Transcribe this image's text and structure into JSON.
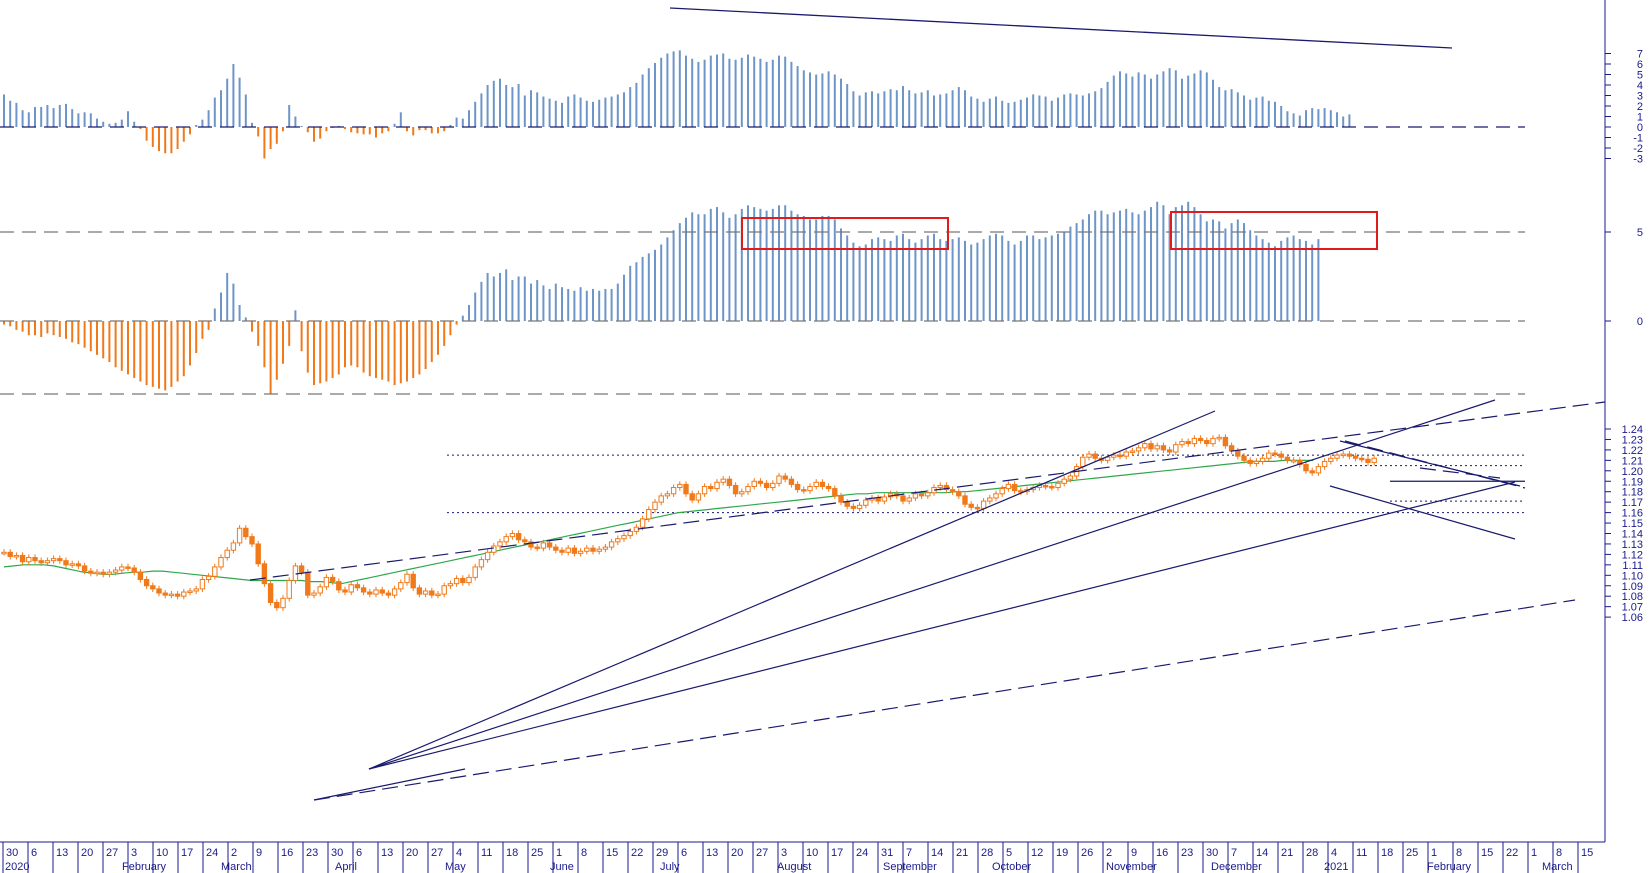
{
  "colors": {
    "up": "#6d95c7",
    "down": "#f07a1a",
    "candle": "#f07a1a",
    "ma": "#2ea84a",
    "trend": "#1a1a6e",
    "box": "#e01b1b",
    "axis": "#1a1a8c",
    "ref": "#555555"
  },
  "chart_data": [
    {
      "type": "bar",
      "panel": "histogram-top",
      "ylim": [
        -3.5,
        7.5
      ],
      "yticks": [
        "7",
        "6",
        "5",
        "4",
        "3",
        "2",
        "1",
        "0",
        "-1",
        "-2",
        "-3"
      ],
      "values": [
        3.1,
        2.5,
        2.3,
        1.6,
        1.4,
        1.9,
        1.9,
        2.1,
        1.8,
        2.1,
        2.2,
        1.7,
        1.3,
        1.4,
        1.3,
        0.8,
        0.5,
        0.3,
        0.4,
        0.7,
        1.5,
        0.5,
        -0.2,
        -1.3,
        -1.9,
        -2.3,
        -2.5,
        -2.5,
        -2.1,
        -1.4,
        -0.7,
        0.2,
        0.7,
        1.6,
        2.8,
        3.5,
        4.6,
        6.0,
        4.7,
        3.1,
        0.4,
        -0.9,
        -3.0,
        -2.1,
        -1.6,
        -0.4,
        2.1,
        1.0,
        0.1,
        -0.5,
        -1.4,
        -1.1,
        -0.4,
        -0.1,
        0.1,
        -0.2,
        -0.5,
        -0.6,
        -0.7,
        -0.7,
        -1.0,
        -0.6,
        -0.4,
        0.3,
        1.4,
        -0.4,
        -0.8,
        -0.3,
        -0.3,
        -0.6,
        -0.6,
        -0.4,
        0.2,
        0.9,
        0.8,
        1.6,
        2.4,
        3.2,
        4.0,
        4.4,
        4.6,
        4.0,
        3.8,
        4.1,
        3.0,
        3.5,
        3.3,
        2.9,
        2.7,
        2.5,
        2.3,
        2.9,
        3.1,
        2.8,
        2.5,
        2.4,
        2.6,
        2.8,
        2.9,
        3.1,
        3.3,
        3.8,
        4.2,
        5.0,
        5.6,
        6.1,
        6.6,
        7.0,
        7.2,
        7.3,
        6.8,
        6.5,
        6.2,
        6.4,
        6.8,
        6.9,
        7.0,
        6.5,
        6.4,
        6.6,
        6.9,
        6.7,
        6.5,
        6.2,
        6.4,
        6.8,
        6.7,
        6.2,
        5.8,
        5.4,
        5.2,
        5.0,
        5.1,
        5.3,
        5.0,
        4.6,
        4.1,
        3.4,
        3.0,
        3.3,
        3.4,
        3.2,
        3.4,
        3.6,
        3.5,
        3.9,
        3.5,
        3.2,
        3.3,
        3.5,
        3.0,
        3.1,
        3.2,
        3.5,
        3.8,
        3.5,
        2.9,
        2.7,
        2.4,
        2.7,
        2.9,
        2.5,
        2.3,
        2.4,
        2.6,
        2.8,
        3.1,
        3.0,
        2.9,
        2.5,
        2.8,
        3.1,
        3.2,
        3.1,
        3.0,
        3.2,
        3.4,
        3.7,
        4.3,
        4.9,
        5.3,
        5.1,
        4.8,
        5.2,
        5.0,
        4.6,
        5.0,
        5.3,
        5.6,
        5.4,
        4.6,
        4.9,
        5.1,
        5.4,
        5.2,
        4.5,
        3.8,
        3.5,
        3.6,
        3.3,
        3.0,
        2.6,
        2.8,
        2.9,
        2.5,
        2.4,
        2.0,
        1.5,
        1.3,
        1.1,
        1.6,
        1.8,
        1.7,
        1.8,
        1.6,
        1.4,
        1.0,
        1.2
      ]
    },
    {
      "type": "bar",
      "panel": "histogram-middle",
      "ylim": [
        -4.5,
        8
      ],
      "yticks": [
        "5",
        "0"
      ],
      "values": [
        -0.2,
        -0.3,
        -0.5,
        -0.6,
        -0.8,
        -0.8,
        -0.9,
        -0.7,
        -0.8,
        -0.9,
        -1.0,
        -1.2,
        -1.3,
        -1.5,
        -1.7,
        -1.9,
        -2.1,
        -2.3,
        -2.6,
        -2.8,
        -3.0,
        -3.2,
        -3.4,
        -3.6,
        -3.7,
        -3.8,
        -3.9,
        -3.7,
        -3.4,
        -3.1,
        -2.5,
        -1.8,
        -1.0,
        -0.5,
        0.7,
        1.6,
        2.7,
        2.1,
        0.9,
        0.2,
        -0.6,
        -1.4,
        -2.6,
        -4.1,
        -3.3,
        -2.4,
        -1.4,
        0.6,
        -1.7,
        -2.9,
        -3.6,
        -3.5,
        -3.4,
        -3.2,
        -3.0,
        -2.6,
        -2.5,
        -2.6,
        -2.9,
        -3.1,
        -3.2,
        -3.3,
        -3.4,
        -3.6,
        -3.5,
        -3.4,
        -3.2,
        -3.0,
        -2.7,
        -2.3,
        -1.9,
        -1.4,
        -0.8,
        -0.2,
        0.3,
        0.9,
        1.6,
        2.2,
        2.7,
        2.5,
        2.7,
        2.9,
        2.3,
        2.5,
        2.5,
        2.1,
        2.3,
        2.0,
        1.8,
        2.1,
        1.9,
        1.8,
        1.7,
        1.9,
        1.7,
        1.8,
        1.7,
        1.8,
        1.8,
        2.1,
        2.6,
        3.1,
        3.3,
        3.6,
        3.8,
        4.0,
        4.3,
        4.7,
        5.1,
        5.5,
        5.8,
        6.1,
        6.0,
        6.0,
        6.3,
        6.4,
        6.1,
        5.8,
        6.0,
        6.3,
        6.5,
        6.4,
        6.3,
        6.2,
        6.3,
        6.5,
        6.5,
        6.2,
        6.0,
        5.9,
        5.7,
        5.7,
        5.9,
        5.9,
        5.7,
        5.2,
        4.8,
        4.4,
        4.2,
        4.3,
        4.6,
        4.7,
        4.6,
        4.5,
        4.8,
        4.9,
        4.6,
        4.4,
        4.6,
        4.8,
        4.9,
        4.6,
        4.5,
        4.6,
        4.7,
        4.5,
        4.3,
        4.4,
        4.6,
        4.8,
        4.9,
        4.8,
        4.5,
        4.3,
        4.5,
        4.8,
        4.8,
        4.6,
        4.7,
        4.8,
        4.9,
        5.0,
        5.3,
        5.5,
        5.7,
        6.0,
        6.2,
        6.2,
        6.0,
        6.1,
        6.2,
        6.3,
        6.1,
        6.0,
        6.2,
        6.4,
        6.7,
        6.5,
        6.0,
        6.4,
        6.5,
        6.7,
        6.4,
        6.0,
        5.6,
        5.7,
        5.6,
        5.2,
        5.5,
        5.7,
        5.5,
        5.1,
        4.8,
        4.6,
        4.4,
        4.2,
        4.5,
        4.7,
        4.8,
        4.6,
        4.5,
        4.3,
        4.6
      ]
    },
    {
      "type": "candlestick",
      "panel": "price",
      "ylim": [
        1.05,
        1.25
      ],
      "yticks": [
        "1.24",
        "1.23",
        "1.22",
        "1.21",
        "1.20",
        "1.19",
        "1.18",
        "1.17",
        "1.16",
        "1.15",
        "1.14",
        "1.13",
        "1.12",
        "1.11",
        "1.10",
        "1.09",
        "1.08",
        "1.07",
        "1.06"
      ],
      "closes": [
        1.122,
        1.118,
        1.119,
        1.113,
        1.117,
        1.114,
        1.112,
        1.114,
        1.116,
        1.114,
        1.11,
        1.111,
        1.109,
        1.104,
        1.102,
        1.103,
        1.101,
        1.103,
        1.105,
        1.108,
        1.107,
        1.103,
        1.096,
        1.09,
        1.087,
        1.083,
        1.081,
        1.082,
        1.08,
        1.084,
        1.085,
        1.087,
        1.096,
        1.099,
        1.108,
        1.117,
        1.124,
        1.131,
        1.145,
        1.137,
        1.13,
        1.111,
        1.092,
        1.074,
        1.069,
        1.078,
        1.095,
        1.109,
        1.103,
        1.081,
        1.083,
        1.089,
        1.098,
        1.094,
        1.086,
        1.084,
        1.091,
        1.088,
        1.084,
        1.082,
        1.086,
        1.083,
        1.081,
        1.087,
        1.093,
        1.101,
        1.088,
        1.082,
        1.085,
        1.081,
        1.082,
        1.09,
        1.092,
        1.097,
        1.093,
        1.098,
        1.108,
        1.115,
        1.122,
        1.128,
        1.132,
        1.137,
        1.14,
        1.134,
        1.132,
        1.127,
        1.126,
        1.131,
        1.127,
        1.124,
        1.122,
        1.126,
        1.121,
        1.123,
        1.126,
        1.123,
        1.125,
        1.127,
        1.132,
        1.135,
        1.138,
        1.142,
        1.146,
        1.154,
        1.163,
        1.17,
        1.176,
        1.178,
        1.184,
        1.187,
        1.178,
        1.172,
        1.178,
        1.185,
        1.183,
        1.189,
        1.192,
        1.186,
        1.178,
        1.18,
        1.185,
        1.19,
        1.188,
        1.184,
        1.188,
        1.195,
        1.192,
        1.187,
        1.182,
        1.181,
        1.185,
        1.189,
        1.185,
        1.183,
        1.176,
        1.17,
        1.166,
        1.164,
        1.167,
        1.172,
        1.174,
        1.171,
        1.175,
        1.178,
        1.176,
        1.171,
        1.174,
        1.178,
        1.176,
        1.179,
        1.184,
        1.186,
        1.182,
        1.18,
        1.176,
        1.168,
        1.165,
        1.164,
        1.171,
        1.174,
        1.178,
        1.183,
        1.187,
        1.181,
        1.18,
        1.182,
        1.184,
        1.186,
        1.185,
        1.184,
        1.188,
        1.192,
        1.195,
        1.204,
        1.213,
        1.216,
        1.212,
        1.21,
        1.213,
        1.215,
        1.214,
        1.218,
        1.219,
        1.222,
        1.226,
        1.221,
        1.224,
        1.22,
        1.218,
        1.225,
        1.228,
        1.226,
        1.231,
        1.229,
        1.226,
        1.231,
        1.232,
        1.224,
        1.219,
        1.214,
        1.21,
        1.207,
        1.209,
        1.212,
        1.217,
        1.216,
        1.213,
        1.21,
        1.21,
        1.206,
        1.2,
        1.198,
        1.204,
        1.209,
        1.212,
        1.215,
        1.216,
        1.214,
        1.212,
        1.211,
        1.208,
        1.212
      ],
      "moving_average": [
        1.108,
        1.109,
        1.11,
        1.11,
        1.11,
        1.109,
        1.107,
        1.105,
        1.103,
        1.102,
        1.101,
        1.101,
        1.102,
        1.103,
        1.103,
        1.104,
        1.104,
        1.103,
        1.102,
        1.101,
        1.1,
        1.099,
        1.098,
        1.097,
        1.096,
        1.095,
        1.095,
        1.095,
        1.095,
        1.095,
        1.095,
        1.094,
        1.094,
        1.093,
        1.092,
        1.094,
        1.096,
        1.098,
        1.1,
        1.102,
        1.104,
        1.106,
        1.108,
        1.11,
        1.112,
        1.114,
        1.116,
        1.118,
        1.12,
        1.122,
        1.124,
        1.126,
        1.128,
        1.13,
        1.132,
        1.134,
        1.136,
        1.138,
        1.14,
        1.142,
        1.144,
        1.146,
        1.148,
        1.15,
        1.152,
        1.154,
        1.156,
        1.158,
        1.16,
        1.161,
        1.162,
        1.163,
        1.164,
        1.165,
        1.166,
        1.167,
        1.168,
        1.169,
        1.17,
        1.171,
        1.172,
        1.173,
        1.174,
        1.175,
        1.176,
        1.177,
        1.178,
        1.178,
        1.179,
        1.179,
        1.179,
        1.179,
        1.179,
        1.179,
        1.179,
        1.179,
        1.18,
        1.18,
        1.181,
        1.182,
        1.183,
        1.184,
        1.185,
        1.186,
        1.187,
        1.188,
        1.189,
        1.19,
        1.191,
        1.192,
        1.193,
        1.194,
        1.195,
        1.196,
        1.197,
        1.198,
        1.199,
        1.2,
        1.201,
        1.202,
        1.203,
        1.204,
        1.205,
        1.206,
        1.207,
        1.208,
        1.209,
        1.209,
        1.209,
        1.21,
        1.21,
        1.21,
        1.21
      ],
      "ma_start_index": 0,
      "ma_step": 1.6
    }
  ],
  "x_axis": {
    "day_labels": [
      "30",
      "6",
      "13",
      "20",
      "27",
      "3",
      "10",
      "17",
      "24",
      "2",
      "9",
      "16",
      "23",
      "30",
      "6",
      "13",
      "20",
      "27",
      "4",
      "11",
      "18",
      "25",
      "1",
      "8",
      "15",
      "22",
      "29",
      "6",
      "13",
      "20",
      "27",
      "3",
      "10",
      "17",
      "24",
      "31",
      "7",
      "14",
      "21",
      "28",
      "5",
      "12",
      "19",
      "26",
      "2",
      "9",
      "16",
      "23",
      "30",
      "7",
      "14",
      "21",
      "28",
      "4",
      "11",
      "18",
      "25",
      "1",
      "8",
      "15",
      "22",
      "1",
      "8",
      "15"
    ],
    "month_labels": [
      "2020",
      "February",
      "March",
      "April",
      "May",
      "June",
      "July",
      "August",
      "September",
      "October",
      "November",
      "December",
      "2021",
      "February",
      "March"
    ]
  }
}
